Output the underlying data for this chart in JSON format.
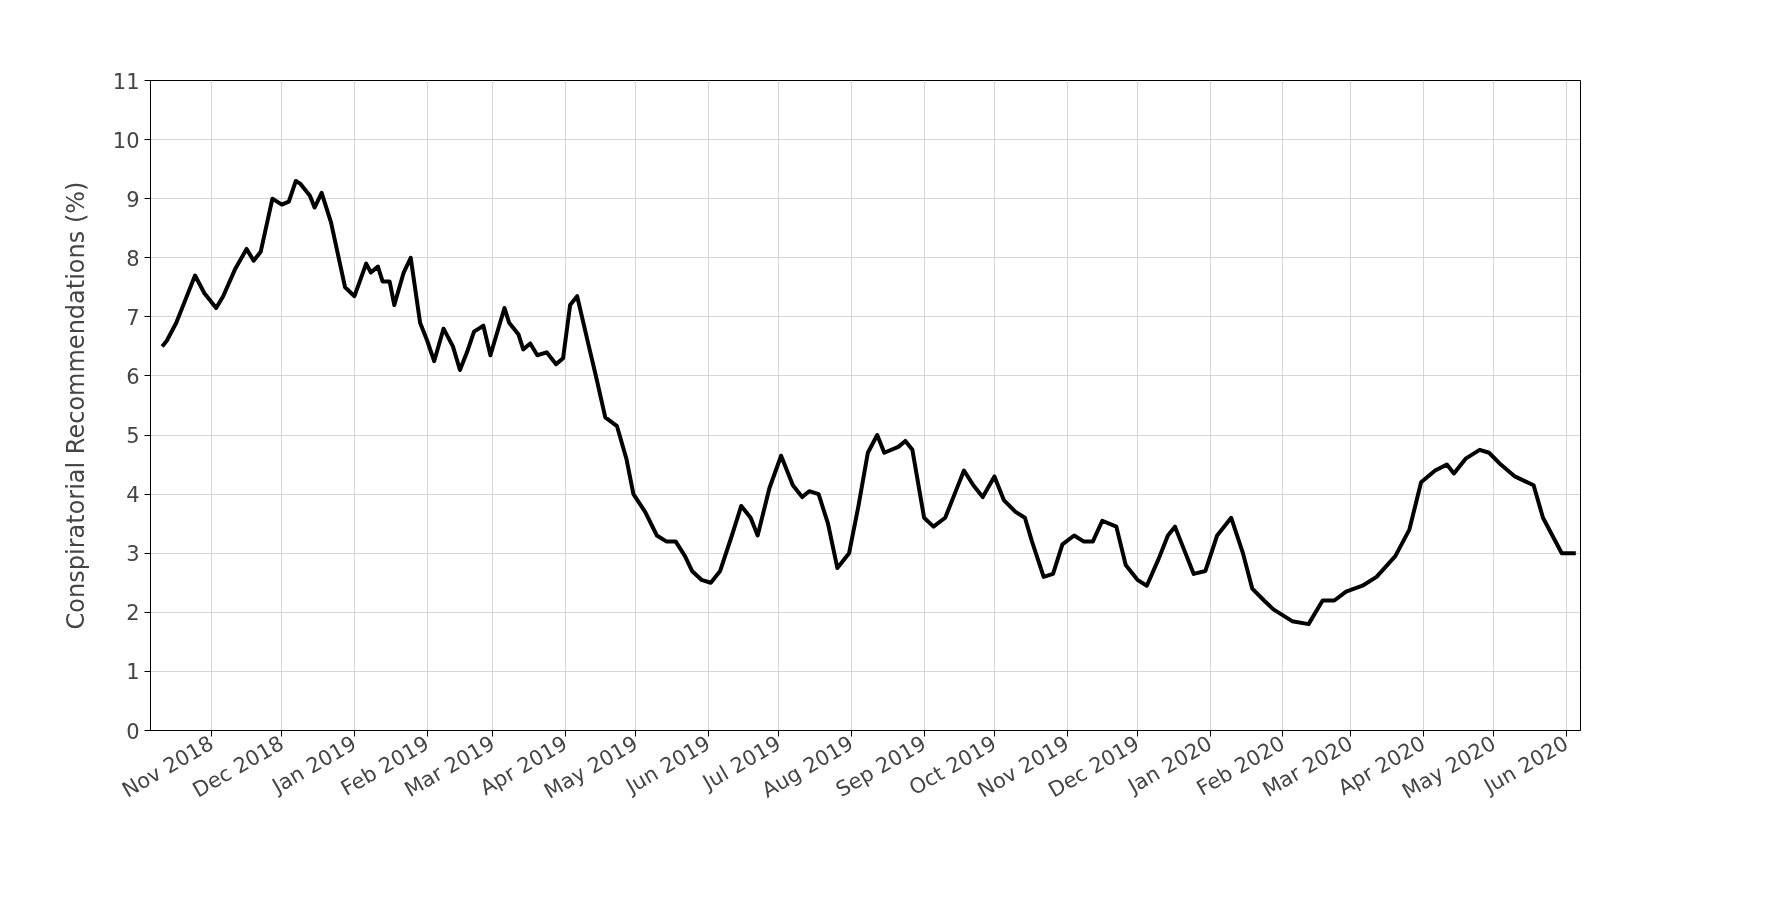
{
  "chart_data": {
    "type": "line",
    "ylabel": "Conspiratorial Recommendations (%)",
    "xlim": [
      "2018-10-06",
      "2020-06-07"
    ],
    "ylim": [
      0,
      11
    ],
    "yticks": [
      0,
      1,
      2,
      3,
      4,
      5,
      6,
      7,
      8,
      9,
      10,
      11
    ],
    "xticks": [
      {
        "value": "2018-11-01",
        "label": "Nov 2018"
      },
      {
        "value": "2018-12-01",
        "label": "Dec 2018"
      },
      {
        "value": "2019-01-01",
        "label": "Jan 2019"
      },
      {
        "value": "2019-02-01",
        "label": "Feb 2019"
      },
      {
        "value": "2019-03-01",
        "label": "Mar 2019"
      },
      {
        "value": "2019-04-01",
        "label": "Apr 2019"
      },
      {
        "value": "2019-05-01",
        "label": "May 2019"
      },
      {
        "value": "2019-06-01",
        "label": "Jun 2019"
      },
      {
        "value": "2019-07-01",
        "label": "Jul 2019"
      },
      {
        "value": "2019-08-01",
        "label": "Aug 2019"
      },
      {
        "value": "2019-09-01",
        "label": "Sep 2019"
      },
      {
        "value": "2019-10-01",
        "label": "Oct 2019"
      },
      {
        "value": "2019-11-01",
        "label": "Nov 2019"
      },
      {
        "value": "2019-12-01",
        "label": "Dec 2019"
      },
      {
        "value": "2020-01-01",
        "label": "Jan 2020"
      },
      {
        "value": "2020-02-01",
        "label": "Feb 2020"
      },
      {
        "value": "2020-03-01",
        "label": "Mar 2020"
      },
      {
        "value": "2020-04-01",
        "label": "Apr 2020"
      },
      {
        "value": "2020-05-01",
        "label": "May 2020"
      },
      {
        "value": "2020-06-01",
        "label": "Jun 2020"
      }
    ],
    "grid": true,
    "marker": "none",
    "line_style": "solid",
    "x": [
      "2018-10-11",
      "2018-10-13",
      "2018-10-17",
      "2018-10-21",
      "2018-10-25",
      "2018-10-29",
      "2018-11-03",
      "2018-11-06",
      "2018-11-11",
      "2018-11-16",
      "2018-11-19",
      "2018-11-22",
      "2018-11-27",
      "2018-12-01",
      "2018-12-04",
      "2018-12-07",
      "2018-12-09",
      "2018-12-13",
      "2018-12-15",
      "2018-12-18",
      "2018-12-22",
      "2018-12-28",
      "2019-01-01",
      "2019-01-06",
      "2019-01-08",
      "2019-01-11",
      "2019-01-13",
      "2019-01-16",
      "2019-01-18",
      "2019-01-22",
      "2019-01-25",
      "2019-01-29",
      "2019-02-01",
      "2019-02-04",
      "2019-02-08",
      "2019-02-12",
      "2019-02-15",
      "2019-02-18",
      "2019-02-21",
      "2019-02-25",
      "2019-02-28",
      "2019-03-06",
      "2019-03-08",
      "2019-03-12",
      "2019-03-14",
      "2019-03-17",
      "2019-03-20",
      "2019-03-24",
      "2019-03-28",
      "2019-03-31",
      "2019-04-03",
      "2019-04-06",
      "2019-04-11",
      "2019-04-14",
      "2019-04-18",
      "2019-04-23",
      "2019-04-27",
      "2019-04-30",
      "2019-05-05",
      "2019-05-10",
      "2019-05-14",
      "2019-05-18",
      "2019-05-22",
      "2019-05-25",
      "2019-05-29",
      "2019-06-02",
      "2019-06-06",
      "2019-06-11",
      "2019-06-15",
      "2019-06-19",
      "2019-06-22",
      "2019-06-27",
      "2019-07-02",
      "2019-07-07",
      "2019-07-11",
      "2019-07-14",
      "2019-07-18",
      "2019-07-22",
      "2019-07-26",
      "2019-07-31",
      "2019-08-04",
      "2019-08-08",
      "2019-08-12",
      "2019-08-15",
      "2019-08-21",
      "2019-08-24",
      "2019-08-27",
      "2019-09-01",
      "2019-09-05",
      "2019-09-10",
      "2019-09-14",
      "2019-09-18",
      "2019-09-22",
      "2019-09-26",
      "2019-10-01",
      "2019-10-05",
      "2019-10-10",
      "2019-10-14",
      "2019-10-17",
      "2019-10-22",
      "2019-10-26",
      "2019-10-30",
      "2019-11-04",
      "2019-11-08",
      "2019-11-12",
      "2019-11-16",
      "2019-11-22",
      "2019-11-26",
      "2019-12-01",
      "2019-12-05",
      "2019-12-10",
      "2019-12-14",
      "2019-12-17",
      "2019-12-20",
      "2019-12-25",
      "2019-12-30",
      "2020-01-04",
      "2020-01-10",
      "2020-01-15",
      "2020-01-19",
      "2020-01-24",
      "2020-01-28",
      "2020-02-05",
      "2020-02-12",
      "2020-02-18",
      "2020-02-23",
      "2020-02-28",
      "2020-03-06",
      "2020-03-12",
      "2020-03-20",
      "2020-03-26",
      "2020-03-31",
      "2020-04-06",
      "2020-04-11",
      "2020-04-14",
      "2020-04-19",
      "2020-04-25",
      "2020-04-29",
      "2020-05-04",
      "2020-05-10",
      "2020-05-18",
      "2020-05-22",
      "2020-05-30",
      "2020-06-05"
    ],
    "series": [
      {
        "color": "#000000",
        "values": [
          6.5,
          6.6,
          6.9,
          7.3,
          7.7,
          7.4,
          7.15,
          7.35,
          7.8,
          8.15,
          7.95,
          8.1,
          9.0,
          8.9,
          8.95,
          9.3,
          9.25,
          9.05,
          8.85,
          9.1,
          8.6,
          7.5,
          7.35,
          7.9,
          7.75,
          7.85,
          7.6,
          7.6,
          7.2,
          7.75,
          8.0,
          6.9,
          6.6,
          6.25,
          6.8,
          6.5,
          6.1,
          6.4,
          6.75,
          6.85,
          6.35,
          7.15,
          6.9,
          6.7,
          6.45,
          6.55,
          6.35,
          6.4,
          6.2,
          6.3,
          7.2,
          7.35,
          6.5,
          6.0,
          5.3,
          5.15,
          4.6,
          4.0,
          3.7,
          3.3,
          3.2,
          3.2,
          2.95,
          2.7,
          2.55,
          2.5,
          2.7,
          3.3,
          3.8,
          3.6,
          3.3,
          4.1,
          4.65,
          4.15,
          3.95,
          4.05,
          4.0,
          3.5,
          2.75,
          3.0,
          3.8,
          4.7,
          5.0,
          4.7,
          4.8,
          4.9,
          4.75,
          3.6,
          3.45,
          3.6,
          4.0,
          4.4,
          4.15,
          3.95,
          4.3,
          3.9,
          3.7,
          3.6,
          3.2,
          2.6,
          2.65,
          3.15,
          3.3,
          3.2,
          3.2,
          3.55,
          3.45,
          2.8,
          2.55,
          2.45,
          2.9,
          3.3,
          3.45,
          3.15,
          2.65,
          2.7,
          3.3,
          3.6,
          3.0,
          2.4,
          2.2,
          2.05,
          1.85,
          1.8,
          2.2,
          2.2,
          2.35,
          2.45,
          2.6,
          2.95,
          3.4,
          4.2,
          4.4,
          4.5,
          4.35,
          4.6,
          4.75,
          4.7,
          4.5,
          4.3,
          4.15,
          3.6,
          3.0,
          3.0
        ]
      }
    ]
  }
}
